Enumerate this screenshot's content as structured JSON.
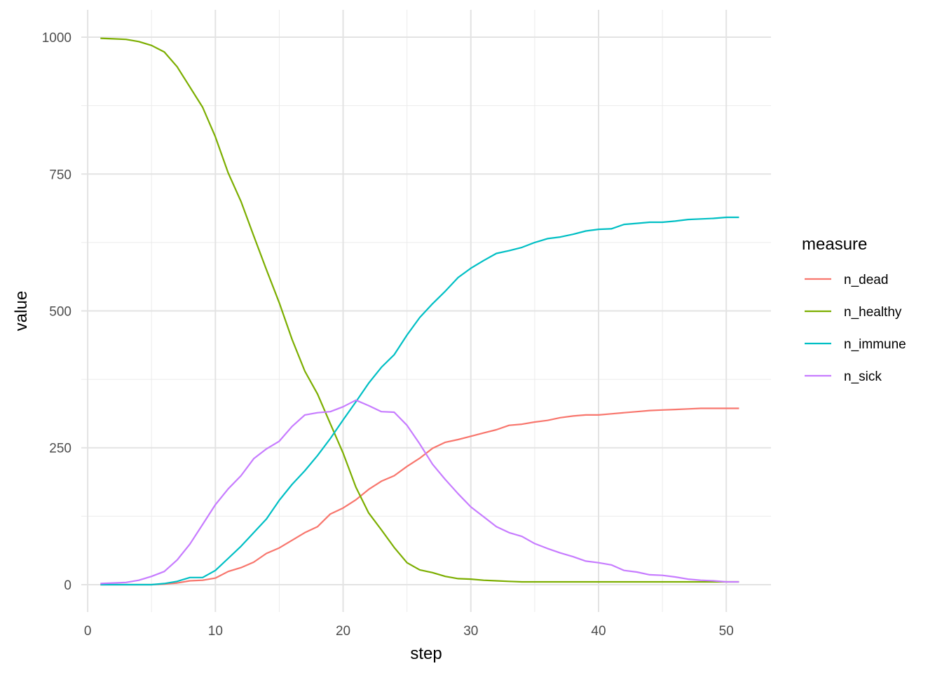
{
  "chart_data": {
    "type": "line",
    "xlabel": "step",
    "ylabel": "value",
    "xlim": [
      -0.5,
      53.5
    ],
    "ylim": [
      -50,
      1050
    ],
    "x_ticks": [
      0,
      10,
      20,
      30,
      40,
      50
    ],
    "y_ticks": [
      0,
      250,
      500,
      750,
      1000
    ],
    "grid": true,
    "legend": {
      "title": "measure",
      "position": "right"
    },
    "x": [
      1,
      2,
      3,
      4,
      5,
      6,
      7,
      8,
      9,
      10,
      11,
      12,
      13,
      14,
      15,
      16,
      17,
      18,
      19,
      20,
      21,
      22,
      23,
      24,
      25,
      26,
      27,
      28,
      29,
      30,
      31,
      32,
      33,
      34,
      35,
      36,
      37,
      38,
      39,
      40,
      41,
      42,
      43,
      44,
      45,
      46,
      47,
      48,
      49,
      50,
      51
    ],
    "series": [
      {
        "name": "n_dead",
        "color": "#F8766D",
        "values": [
          0,
          0,
          0,
          0,
          0,
          1,
          3,
          7,
          8,
          12,
          24,
          31,
          41,
          57,
          67,
          81,
          95,
          106,
          129,
          140,
          155,
          174,
          189,
          199,
          216,
          231,
          249,
          260,
          265,
          271,
          277,
          283,
          291,
          293,
          297,
          300,
          305,
          308,
          310,
          310,
          312,
          314,
          316,
          318,
          319,
          320,
          321,
          322,
          322,
          322,
          322
        ]
      },
      {
        "name": "n_healthy",
        "color": "#7CAE00",
        "values": [
          998,
          997,
          996,
          992,
          985,
          973,
          946,
          909,
          872,
          818,
          752,
          700,
          637,
          575,
          515,
          448,
          390,
          348,
          294,
          240,
          178,
          131,
          100,
          68,
          40,
          27,
          22,
          15,
          11,
          10,
          8,
          7,
          6,
          5,
          5,
          5,
          5,
          5,
          5,
          5,
          5,
          5,
          5,
          5,
          5,
          5,
          5,
          5,
          5,
          5,
          5
        ]
      },
      {
        "name": "n_immune",
        "color": "#00BFC4",
        "values": [
          0,
          0,
          0,
          0,
          0,
          2,
          6,
          13,
          13,
          26,
          48,
          70,
          95,
          120,
          154,
          183,
          208,
          236,
          267,
          301,
          334,
          368,
          397,
          420,
          456,
          488,
          513,
          536,
          561,
          578,
          592,
          605,
          610,
          616,
          625,
          632,
          635,
          640,
          646,
          649,
          650,
          658,
          660,
          662,
          662,
          664,
          667,
          668,
          669,
          671,
          671
        ]
      },
      {
        "name": "n_sick",
        "color": "#C77CFF",
        "values": [
          2,
          3,
          4,
          8,
          15,
          24,
          45,
          74,
          110,
          146,
          175,
          199,
          230,
          248,
          262,
          289,
          310,
          314,
          316,
          325,
          337,
          327,
          316,
          315,
          291,
          257,
          220,
          192,
          166,
          142,
          124,
          106,
          95,
          88,
          75,
          66,
          58,
          51,
          43,
          40,
          36,
          26,
          23,
          18,
          17,
          14,
          10,
          8,
          7,
          5,
          5
        ]
      }
    ]
  }
}
